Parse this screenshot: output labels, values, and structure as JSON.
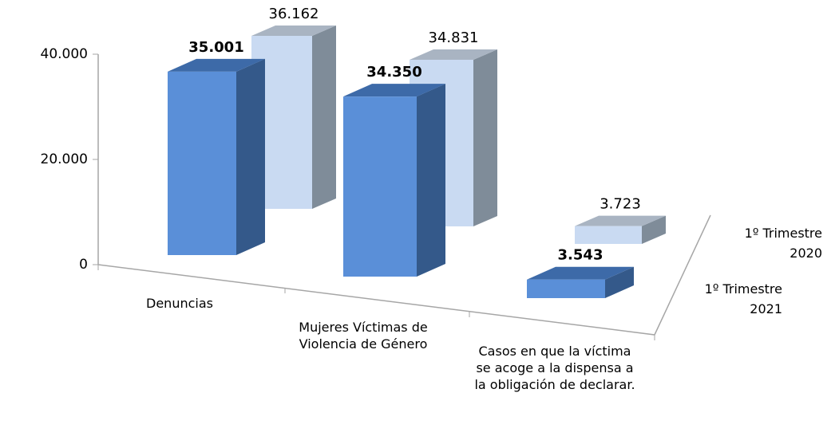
{
  "chart_data": {
    "type": "bar3d",
    "categories": [
      "Denuncias",
      "Mujeres Víctimas de Violencia de Género",
      "Casos en que la víctima se acoge a la dispensa a la obligación de declarar."
    ],
    "series": [
      {
        "name": "1º Trimestre 2021",
        "color": "#5a8fd8",
        "values": [
          35001,
          34350,
          3543
        ],
        "value_labels": [
          "35.001",
          "34.350",
          "3.543"
        ]
      },
      {
        "name": "1º Trimestre 2020",
        "color": "#c9daf2",
        "values": [
          36162,
          34831,
          3723
        ],
        "value_labels": [
          "36.162",
          "34.831",
          "3.723"
        ]
      }
    ],
    "ylim": [
      0,
      40000
    ],
    "yticks": [
      {
        "value": 0,
        "label": "0"
      },
      {
        "value": 20000,
        "label": "20.000"
      },
      {
        "value": 40000,
        "label": "40.000"
      }
    ]
  }
}
